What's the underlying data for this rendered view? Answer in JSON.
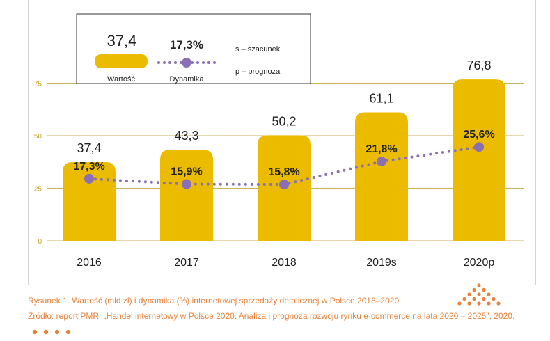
{
  "chart_data": {
    "type": "bar",
    "categories": [
      "2016",
      "2017",
      "2018",
      "2019s",
      "2020p"
    ],
    "series": [
      {
        "name": "Wartość",
        "type": "bar",
        "values": [
          37.4,
          43.3,
          50.2,
          61.1,
          76.8
        ],
        "labels": [
          "37,4",
          "43,3",
          "50,2",
          "61,1",
          "76,8"
        ]
      },
      {
        "name": "Dynamika",
        "type": "line",
        "values": [
          17.3,
          15.9,
          15.8,
          21.8,
          25.6
        ],
        "labels": [
          "17,3%",
          "15,9%",
          "15,8%",
          "21,8%",
          "25,6%"
        ]
      }
    ],
    "yticks": [
      "0",
      "25",
      "50",
      "75"
    ],
    "ytick_values": [
      0,
      25,
      50,
      75
    ],
    "ylim": [
      0,
      80
    ],
    "grid": true,
    "legend": {
      "position": "top-left",
      "bar_value": "37,4",
      "bar_label": "Wartość",
      "line_value": "17,3%",
      "line_label": "Dynamika",
      "notes": [
        "s – szacunek",
        "p – prognoza"
      ]
    },
    "colors": {
      "bar": "#ebbb00",
      "line": "#8a6fb5",
      "grid": "#c9b25a",
      "tick_text": "#c9a227"
    }
  },
  "captions": {
    "figure": "Rysunek 1. Wartość (mld zł) i dynamika (%) internetowej sprzedaży detalicznej w Polsce 2018–2020",
    "source": "Źródło: report PMR: „Handel internetowy w Polsce 2020. Analiza i prognoza rozwoju rynku e-commerce na lata 2020 – 2025\", 2020."
  },
  "colors": {
    "caption": "#e8823a",
    "dots": "#e8823a"
  }
}
